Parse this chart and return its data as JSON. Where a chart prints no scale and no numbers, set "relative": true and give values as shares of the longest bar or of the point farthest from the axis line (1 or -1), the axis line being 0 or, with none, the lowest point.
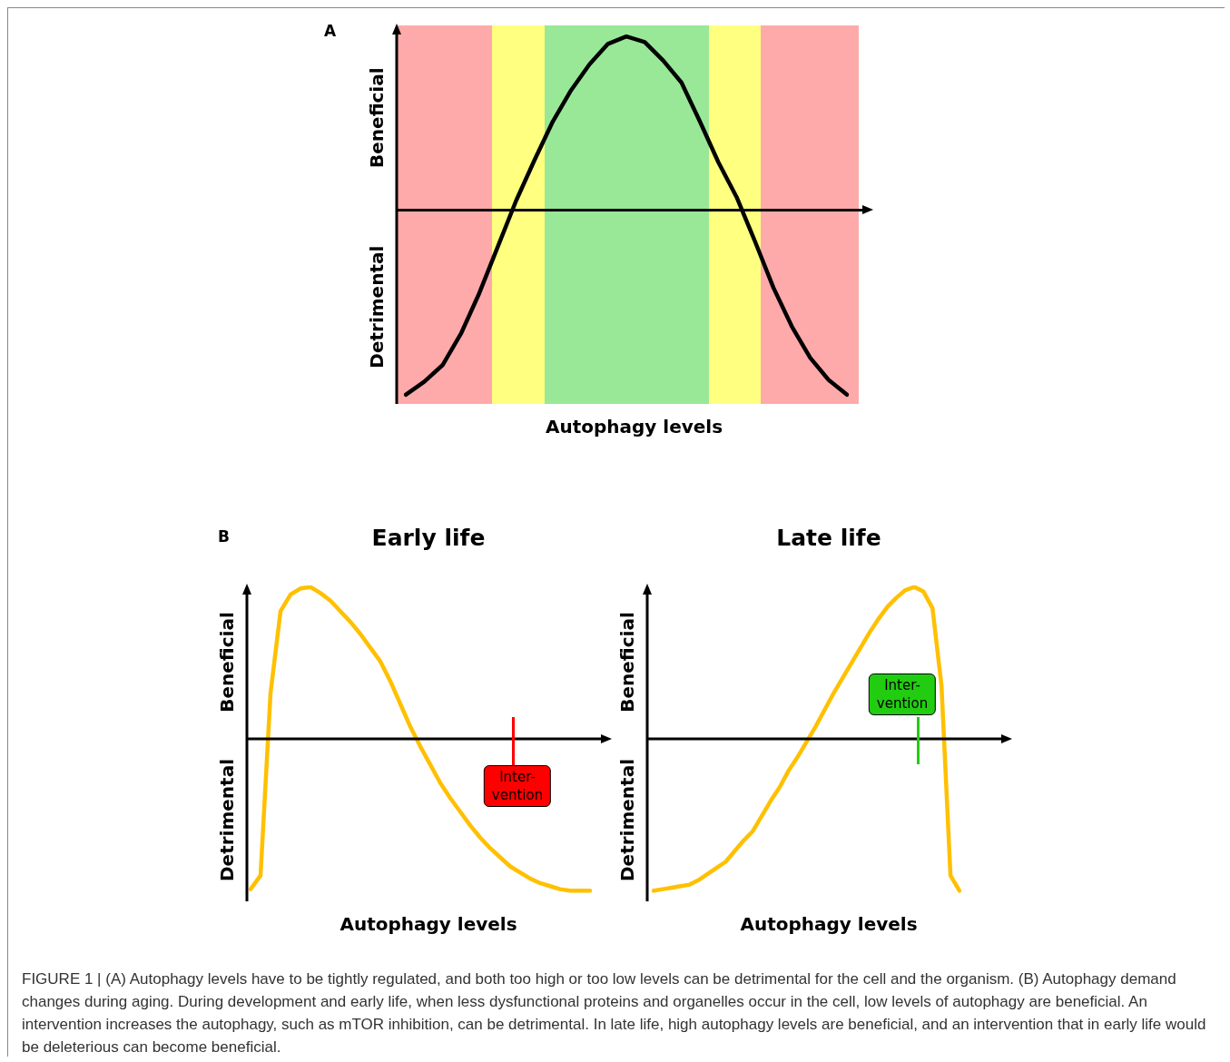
{
  "chart_data": [
    {
      "type": "line",
      "relative": true,
      "xlabel": "Autophagy levels",
      "annotations": [
        "Beneficial",
        "Detrimental",
        "A"
      ],
      "categories": [
        null,
        null,
        null,
        null,
        null,
        null,
        null,
        null,
        null,
        null,
        null,
        null,
        null,
        null,
        null,
        null,
        null,
        null,
        null,
        null,
        null,
        null,
        null,
        null,
        null
      ],
      "values": [
        -1,
        -0.93,
        -0.84,
        -0.67,
        -0.45,
        -0.2,
        0.05,
        0.27,
        0.48,
        0.65,
        0.79,
        0.9,
        0.94,
        0.91,
        0.81,
        0.69,
        0.48,
        0.26,
        0.07,
        -0.17,
        -0.42,
        -0.63,
        -0.8,
        -0.92,
        -1
      ],
      "color": "#000000"
    },
    {
      "type": "line",
      "relative": true,
      "title": "Early life",
      "xlabel": "Autophagy levels",
      "annotations": [
        "Beneficial",
        "Detrimental",
        "Inter-\nvention",
        "B"
      ],
      "categories": [
        null,
        null,
        null,
        null,
        null,
        null,
        null,
        null,
        null,
        null,
        null,
        null,
        null,
        null,
        null,
        null,
        null,
        null,
        null,
        null,
        null,
        null,
        null,
        null,
        null,
        null,
        null,
        null,
        null,
        null,
        null,
        null,
        null,
        null,
        null
      ],
      "values": [
        -0.99,
        -0.9,
        0.3,
        0.84,
        0.95,
        0.99,
        1,
        0.96,
        0.91,
        0.84,
        0.77,
        0.69,
        0.6,
        0.51,
        0.38,
        0.23,
        0.08,
        -0.05,
        -0.17,
        -0.29,
        -0.39,
        -0.48,
        -0.57,
        -0.65,
        -0.72,
        -0.78,
        -0.84,
        -0.88,
        -0.92,
        -0.95,
        -0.97,
        -0.99,
        -1,
        -1,
        -1
      ],
      "color": "#ffc000"
    },
    {
      "type": "line",
      "relative": true,
      "title": "Late life",
      "xlabel": "Autophagy levels",
      "annotations": [
        "Beneficial",
        "Detrimental",
        "Inter-\nvention",
        "FIGURE 1 | (A) Autophagy levels have to be tightly regulated, and both too high or too low levels can be detrimental for the cell and the organism. (B) Autophagy demand changes during aging. During development and early life, when less dysfunctional proteins and organelles occur in the cell, low levels of autophagy are beneficial. An intervention increases the autophagy, such as mTOR inhibition, can be detrimental. In late life, high autophagy levels are beneficial, and an intervention that in early life would be deleterious can become beneficial."
      ],
      "categories": [
        null,
        null,
        null,
        null,
        null,
        null,
        null,
        null,
        null,
        null,
        null,
        null,
        null,
        null,
        null,
        null,
        null,
        null,
        null,
        null,
        null,
        null,
        null,
        null,
        null,
        null,
        null,
        null,
        null,
        null,
        null,
        null,
        null,
        null,
        null
      ],
      "values": [
        -1,
        -0.99,
        -0.98,
        -0.97,
        -0.96,
        -0.93,
        -0.89,
        -0.85,
        -0.81,
        -0.74,
        -0.67,
        -0.61,
        -0.51,
        -0.41,
        -0.32,
        -0.21,
        -0.12,
        -0.02,
        0.08,
        0.19,
        0.3,
        0.4,
        0.5,
        0.6,
        0.7,
        0.79,
        0.87,
        0.93,
        0.98,
        1,
        0.97,
        0.86,
        0.35,
        -0.9,
        -1
      ],
      "color": "#ffc000"
    }
  ]
}
